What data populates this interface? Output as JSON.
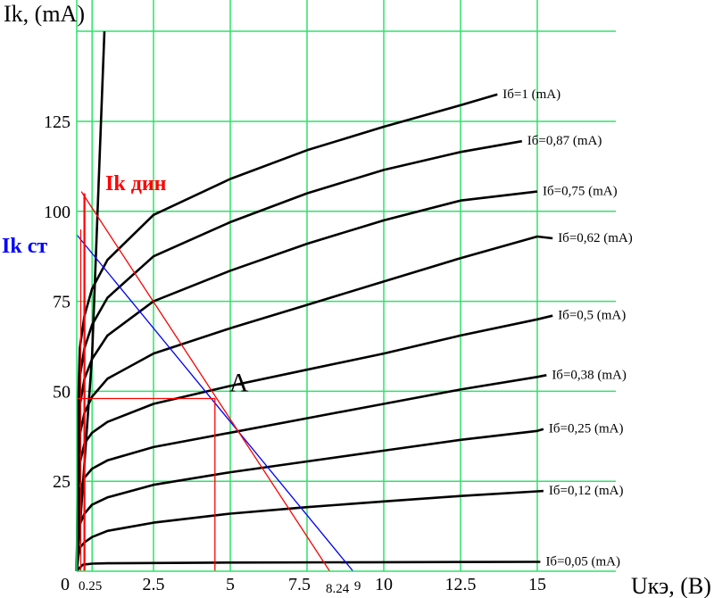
{
  "chart_data": {
    "type": "line",
    "title": "",
    "ylabel": "Ik, (mA)",
    "xlabel": "Uкэ, (В)",
    "origin_label": "0",
    "xlim": [
      0,
      17
    ],
    "ylim": [
      0,
      150
    ],
    "grid": true,
    "colors": {
      "grid": "#2ee26a",
      "curve": "#000000",
      "dyn": "#ff0000",
      "stat": "#0000ff"
    },
    "x_ticks": [
      {
        "value": 0.25,
        "label": "0.25",
        "small": true
      },
      {
        "value": 2.5,
        "label": "2.5",
        "small": false
      },
      {
        "value": 5,
        "label": "5",
        "small": false
      },
      {
        "value": 7.5,
        "label": "7.5",
        "small": false
      },
      {
        "value": 8.24,
        "label": "8.24",
        "small": true
      },
      {
        "value": 9,
        "label": "9",
        "small": true
      },
      {
        "value": 10,
        "label": "10",
        "small": false
      },
      {
        "value": 12.5,
        "label": "12.5",
        "small": false
      },
      {
        "value": 15,
        "label": "15",
        "small": false
      }
    ],
    "y_ticks": [
      {
        "value": 25,
        "label": "25"
      },
      {
        "value": 50,
        "label": "50"
      },
      {
        "value": 75,
        "label": "75"
      },
      {
        "value": 100,
        "label": "100"
      },
      {
        "value": 125,
        "label": "125"
      }
    ],
    "series": [
      {
        "name": "Iб=0,05 (mA)",
        "points": [
          [
            0,
            0
          ],
          [
            0.1,
            1
          ],
          [
            0.2,
            1.8
          ],
          [
            0.5,
            2.1
          ],
          [
            1,
            2.2
          ],
          [
            5,
            2.4
          ],
          [
            10,
            2.5
          ],
          [
            15,
            2.6
          ],
          [
            15.1,
            2.6
          ]
        ]
      },
      {
        "name": "Iб=0,12 (mA)",
        "points": [
          [
            0,
            0
          ],
          [
            0.05,
            4
          ],
          [
            0.1,
            6.5
          ],
          [
            0.25,
            8
          ],
          [
            0.5,
            9.5
          ],
          [
            1,
            11.2
          ],
          [
            2.5,
            13.5
          ],
          [
            5,
            16
          ],
          [
            7.5,
            17.8
          ],
          [
            10,
            19.4
          ],
          [
            12.5,
            20.9
          ],
          [
            15,
            22.2
          ],
          [
            15.2,
            22.3
          ]
        ]
      },
      {
        "name": "Iб=0,25 (mA)",
        "points": [
          [
            0,
            0
          ],
          [
            0.05,
            8
          ],
          [
            0.1,
            13
          ],
          [
            0.25,
            16
          ],
          [
            0.5,
            18.5
          ],
          [
            1,
            20.5
          ],
          [
            2.5,
            24
          ],
          [
            5,
            27.5
          ],
          [
            7.5,
            30.5
          ],
          [
            10,
            33.5
          ],
          [
            12.5,
            36.5
          ],
          [
            15,
            39
          ],
          [
            15.2,
            39.5
          ]
        ]
      },
      {
        "name": "Iб=0,38 (mA)",
        "points": [
          [
            0,
            0
          ],
          [
            0.05,
            14
          ],
          [
            0.1,
            22
          ],
          [
            0.25,
            26
          ],
          [
            0.5,
            28.5
          ],
          [
            1,
            30.8
          ],
          [
            2.5,
            34.5
          ],
          [
            5,
            38.5
          ],
          [
            7.5,
            42.5
          ],
          [
            10,
            46.5
          ],
          [
            12.5,
            50.5
          ],
          [
            15,
            54
          ],
          [
            15.3,
            54.5
          ]
        ]
      },
      {
        "name": "Iб=0,5 (mA)",
        "points": [
          [
            0,
            0
          ],
          [
            0.05,
            20
          ],
          [
            0.1,
            30
          ],
          [
            0.25,
            35.5
          ],
          [
            0.5,
            38.5
          ],
          [
            1,
            41.5
          ],
          [
            2.5,
            46.5
          ],
          [
            5,
            51.5
          ],
          [
            7.5,
            56
          ],
          [
            10,
            60.5
          ],
          [
            12.5,
            65.5
          ],
          [
            15,
            70
          ],
          [
            15.5,
            71
          ]
        ]
      },
      {
        "name": "Iб=0,62 (mA)",
        "points": [
          [
            0,
            0
          ],
          [
            0.05,
            27
          ],
          [
            0.1,
            38
          ],
          [
            0.25,
            44
          ],
          [
            0.5,
            48.5
          ],
          [
            1,
            53.5
          ],
          [
            2.5,
            60.5
          ],
          [
            5,
            67.5
          ],
          [
            7.5,
            74
          ],
          [
            10,
            80.5
          ],
          [
            12.5,
            87
          ],
          [
            15,
            93
          ],
          [
            15.5,
            92.5
          ]
        ]
      },
      {
        "name": "Iб=0,75 (mA)",
        "points": [
          [
            0,
            0
          ],
          [
            0.05,
            33
          ],
          [
            0.1,
            46
          ],
          [
            0.25,
            53.5
          ],
          [
            0.5,
            59
          ],
          [
            1,
            65.5
          ],
          [
            2.5,
            75
          ],
          [
            5,
            83.5
          ],
          [
            7.5,
            91
          ],
          [
            10,
            97.5
          ],
          [
            12.5,
            103
          ],
          [
            15,
            105.5
          ]
        ]
      },
      {
        "name": "Iб=0,87 (mA)",
        "points": [
          [
            0,
            0
          ],
          [
            0.05,
            40
          ],
          [
            0.1,
            54
          ],
          [
            0.25,
            62
          ],
          [
            0.5,
            68.5
          ],
          [
            1,
            76
          ],
          [
            2.5,
            87.5
          ],
          [
            5,
            97
          ],
          [
            7.5,
            105
          ],
          [
            10,
            111.5
          ],
          [
            12.5,
            116.5
          ],
          [
            14.5,
            119.5
          ]
        ]
      },
      {
        "name": "Iб=1 (mA)",
        "points": [
          [
            0,
            0
          ],
          [
            0.05,
            47
          ],
          [
            0.1,
            62
          ],
          [
            0.25,
            71
          ],
          [
            0.5,
            78.5
          ],
          [
            1,
            86.5
          ],
          [
            2.5,
            99
          ],
          [
            5,
            109
          ],
          [
            7.5,
            117
          ],
          [
            10,
            123.5
          ],
          [
            12.5,
            129.5
          ],
          [
            13.7,
            132.5
          ]
        ]
      }
    ],
    "saturation_line": {
      "points": [
        [
          0,
          0
        ],
        [
          0.5,
          60
        ],
        [
          0.9,
          150
        ]
      ]
    },
    "load_line_dyn": {
      "name": "Ik дин",
      "points": [
        [
          0.15,
          105.5
        ],
        [
          8.24,
          0
        ]
      ]
    },
    "load_line_stat": {
      "name": "Ik ст",
      "points": [
        [
          0,
          93.5
        ],
        [
          9,
          0
        ]
      ]
    },
    "dyn_vertical": {
      "x": 0.25,
      "ylim": [
        0,
        105
      ]
    },
    "operating_point": {
      "name": "A",
      "x": 4.5,
      "y": 48,
      "guides": true
    }
  }
}
